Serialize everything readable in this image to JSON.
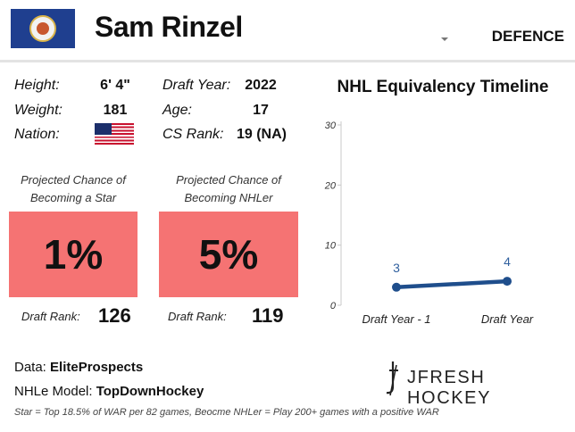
{
  "header": {
    "flag_icon": "minnesota-flag-icon",
    "name": "Sam Rinzel",
    "position": "DEFENCE"
  },
  "bio": {
    "height_label": "Height:",
    "height": "6' 4\"",
    "weight_label": "Weight:",
    "weight": "181",
    "nation_label": "Nation:",
    "nation_flag_icon": "usa-flag-icon",
    "draft_year_label": "Draft Year:",
    "draft_year": "2022",
    "age_label": "Age:",
    "age": "17",
    "cs_rank_label": "CS Rank:",
    "cs_rank": "19 (NA)"
  },
  "projections": {
    "star": {
      "label_line1": "Projected Chance of",
      "label_line2": "Becoming a Star",
      "value": "1%",
      "draft_rank_label": "Draft Rank:",
      "draft_rank": "126"
    },
    "nhler": {
      "label_line1": "Projected Chance of",
      "label_line2": "Becoming NHLer",
      "value": "5%",
      "draft_rank_label": "Draft Rank:",
      "draft_rank": "119"
    },
    "box_color": "#f57373"
  },
  "chart_data": {
    "type": "line",
    "title": "NHL Equivalency Timeline",
    "categories": [
      "Draft Year - 1",
      "Draft Year"
    ],
    "series": [
      {
        "values": [
          3,
          4
        ],
        "color": "#1f4e8c"
      }
    ],
    "data_labels": [
      "3",
      "4"
    ],
    "yticks": [
      0,
      10,
      20,
      30
    ],
    "ylim": [
      0,
      30
    ],
    "grid": false,
    "xlabel": "",
    "ylabel": ""
  },
  "footer": {
    "data_label": "Data: ",
    "data_source": "EliteProspects",
    "model_label": "NHLe Model: ",
    "model_source": "TopDownHockey",
    "footnote": "Star = Top 18.5% of WAR per 82 games, Beocme NHLer = Play 200+ games with a positive WAR",
    "logo_text": "JFRESH HOCKEY",
    "logo_icon": "jfresh-logo-icon"
  }
}
